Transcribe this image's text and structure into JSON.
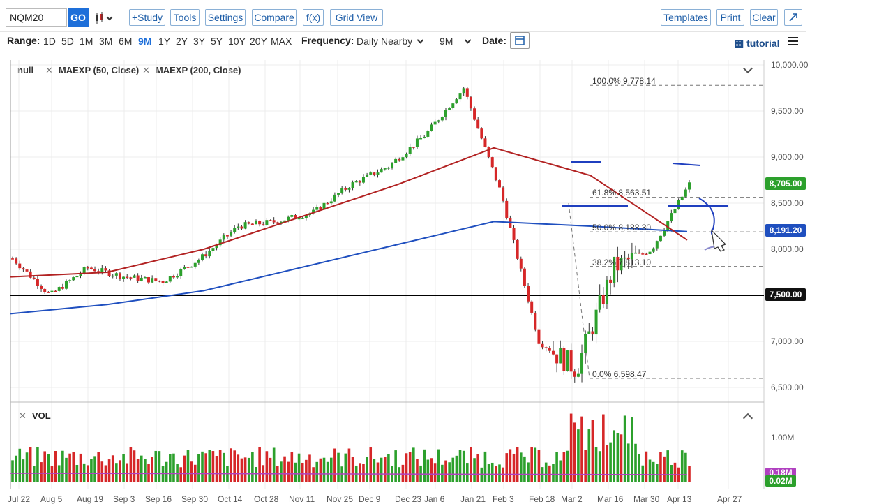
{
  "toolbar": {
    "symbol": "NQM20",
    "go_label": "GO",
    "buttons": [
      "+Study",
      "Tools",
      "Settings",
      "Compare",
      "f(x)",
      "Grid View"
    ],
    "right_buttons": [
      "Templates",
      "Print",
      "Clear"
    ]
  },
  "range_bar": {
    "range_label": "Range:",
    "ranges": [
      "1D",
      "5D",
      "1M",
      "3M",
      "6M",
      "9M",
      "1Y",
      "2Y",
      "3Y",
      "5Y",
      "10Y",
      "20Y",
      "MAX"
    ],
    "selected_range": "9M",
    "frequency_label": "Frequency:",
    "frequency_value": "Daily Nearby",
    "period_value": "9M",
    "date_label": "Date:",
    "tutorial_label": "tutorial"
  },
  "studies": {
    "main": "null",
    "ma50": "MAEXP (50, Close)",
    "ma200": "MAEXP (200, Close)",
    "volume": "VOL"
  },
  "y_axis": [
    "10,000.00",
    "9,500.00",
    "9,000.00",
    "8,500.00",
    "8,000.00",
    "7,000.00",
    "6,500.00"
  ],
  "price_labels": {
    "last": "8,705.00",
    "ma": "8,191.20",
    "level": "7,500.00"
  },
  "volume_axis": {
    "tick": "1.00M",
    "label_a": "0.18M",
    "label_b": "0.02M"
  },
  "fib_levels": [
    "100.0% 9,778.14",
    "61.8% 8,563.51",
    "50.0% 8,188.30",
    "38.2% 7,813.10",
    "0.0% 6,598.47"
  ],
  "x_axis": [
    "Jul 22",
    "Aug 5",
    "Aug 19",
    "Sep 3",
    "Sep 16",
    "Sep 30",
    "Oct 14",
    "Oct 28",
    "Nov 11",
    "Nov 25",
    "Dec 9",
    "Dec 23",
    "Jan 6",
    "Jan 21",
    "Feb 3",
    "Feb 18",
    "Mar 2",
    "Mar 16",
    "Mar 30",
    "Apr 13",
    "Apr 27"
  ],
  "colors": {
    "up": "#2ca02c",
    "down": "#d62728",
    "ma50": "#b22222",
    "ma200": "#1f4fbf",
    "accent": "#1e6fd9"
  },
  "chart_data": {
    "type": "candlestick",
    "series": [
      {
        "name": "MAEXP (50, Close)",
        "values": [
          7700,
          7750,
          8000,
          8350,
          8700,
          9100,
          8800,
          8100
        ]
      },
      {
        "name": "MAEXP (200, Close)",
        "values": [
          7300,
          7400,
          7550,
          7800,
          8050,
          8300,
          8250,
          8191.2
        ]
      }
    ],
    "closes": [
      7900,
      7500,
      7800,
      7700,
      7650,
      7900,
      8250,
      8300,
      8400,
      8700,
      8900,
      9250,
      9750,
      8600,
      7000,
      6700,
      7800,
      8000,
      8705
    ],
    "ylim": [
      6500,
      10000
    ],
    "horizontal_line": 7500
  }
}
